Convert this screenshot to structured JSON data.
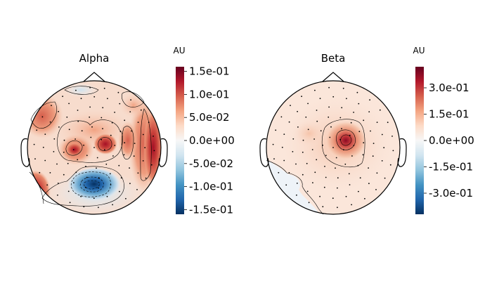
{
  "figure": {
    "panels": [
      {
        "title": "Alpha",
        "unit": "AU",
        "colorbar_ticks": [
          "1.5e-01",
          "1.0e-01",
          "5.0e-02",
          "0.0e+00",
          "-5.0e-02",
          "-1.0e-01",
          "-1.5e-01"
        ],
        "colorbar_range": [
          -0.16,
          0.16
        ],
        "colormap": "RdBu_r"
      },
      {
        "title": "Beta",
        "unit": "AU",
        "colorbar_ticks": [
          "3.0e-01",
          "1.5e-01",
          "0.0e+00",
          "-1.5e-01",
          "-3.0e-01"
        ],
        "colorbar_range": [
          -0.42,
          0.42
        ],
        "colormap": "RdBu_r"
      }
    ],
    "colors": {
      "positive_max": "#67001f",
      "negative_max": "#053061",
      "neutral": "#f7f7f7"
    }
  }
}
